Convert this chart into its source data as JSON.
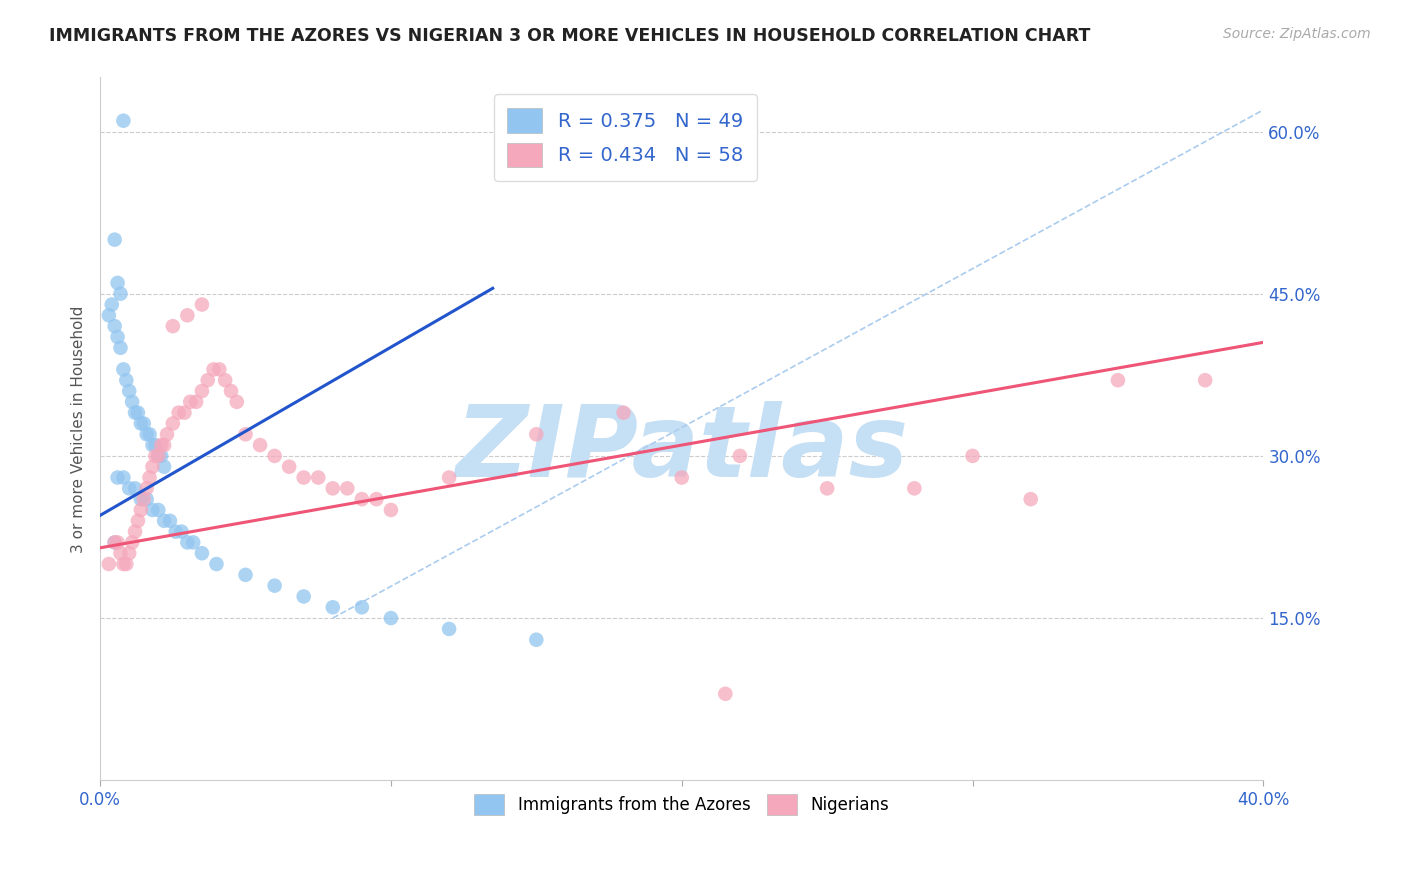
{
  "title": "IMMIGRANTS FROM THE AZORES VS NIGERIAN 3 OR MORE VEHICLES IN HOUSEHOLD CORRELATION CHART",
  "source": "Source: ZipAtlas.com",
  "ylabel_left": "3 or more Vehicles in Household",
  "legend_label1": "Immigrants from the Azores",
  "legend_label2": "Nigerians",
  "R1": "0.375",
  "N1": "49",
  "R2": "0.434",
  "N2": "58",
  "x_min": 0.0,
  "x_max": 0.4,
  "y_min": 0.0,
  "y_max": 0.65,
  "y_ticks_right": [
    0.15,
    0.3,
    0.45,
    0.6
  ],
  "y_tick_labels_right": [
    "15.0%",
    "30.0%",
    "45.0%",
    "60.0%"
  ],
  "grid_color": "#cccccc",
  "bg_color": "#ffffff",
  "blue_color": "#92c5f0",
  "pink_color": "#f5a8bc",
  "blue_line_color": "#2255cc",
  "pink_line_color": "#ee5577",
  "diag_line_color": "#aaccee",
  "watermark": "ZIPatlas",
  "watermark_color": "#c5dff5",
  "blue_scatter_x": [
    0.008,
    0.005,
    0.006,
    0.007,
    0.004,
    0.003,
    0.005,
    0.006,
    0.007,
    0.008,
    0.009,
    0.01,
    0.011,
    0.012,
    0.013,
    0.014,
    0.015,
    0.016,
    0.017,
    0.018,
    0.019,
    0.02,
    0.021,
    0.022,
    0.006,
    0.008,
    0.01,
    0.012,
    0.014,
    0.016,
    0.018,
    0.02,
    0.022,
    0.024,
    0.026,
    0.028,
    0.03,
    0.032,
    0.035,
    0.04,
    0.05,
    0.06,
    0.07,
    0.08,
    0.09,
    0.1,
    0.12,
    0.15,
    0.005
  ],
  "blue_scatter_y": [
    0.61,
    0.5,
    0.46,
    0.45,
    0.44,
    0.43,
    0.42,
    0.41,
    0.4,
    0.38,
    0.37,
    0.36,
    0.35,
    0.34,
    0.34,
    0.33,
    0.33,
    0.32,
    0.32,
    0.31,
    0.31,
    0.3,
    0.3,
    0.29,
    0.28,
    0.28,
    0.27,
    0.27,
    0.26,
    0.26,
    0.25,
    0.25,
    0.24,
    0.24,
    0.23,
    0.23,
    0.22,
    0.22,
    0.21,
    0.2,
    0.19,
    0.18,
    0.17,
    0.16,
    0.16,
    0.15,
    0.14,
    0.13,
    0.22
  ],
  "pink_scatter_x": [
    0.003,
    0.005,
    0.006,
    0.007,
    0.008,
    0.009,
    0.01,
    0.011,
    0.012,
    0.013,
    0.014,
    0.015,
    0.016,
    0.017,
    0.018,
    0.019,
    0.02,
    0.021,
    0.022,
    0.023,
    0.025,
    0.027,
    0.029,
    0.031,
    0.033,
    0.035,
    0.037,
    0.039,
    0.041,
    0.043,
    0.045,
    0.047,
    0.05,
    0.055,
    0.06,
    0.065,
    0.07,
    0.075,
    0.08,
    0.085,
    0.09,
    0.095,
    0.1,
    0.12,
    0.15,
    0.18,
    0.2,
    0.22,
    0.25,
    0.28,
    0.3,
    0.32,
    0.35,
    0.38,
    0.025,
    0.03,
    0.035,
    0.215
  ],
  "pink_scatter_y": [
    0.2,
    0.22,
    0.22,
    0.21,
    0.2,
    0.2,
    0.21,
    0.22,
    0.23,
    0.24,
    0.25,
    0.26,
    0.27,
    0.28,
    0.29,
    0.3,
    0.3,
    0.31,
    0.31,
    0.32,
    0.33,
    0.34,
    0.34,
    0.35,
    0.35,
    0.36,
    0.37,
    0.38,
    0.38,
    0.37,
    0.36,
    0.35,
    0.32,
    0.31,
    0.3,
    0.29,
    0.28,
    0.28,
    0.27,
    0.27,
    0.26,
    0.26,
    0.25,
    0.28,
    0.32,
    0.34,
    0.28,
    0.3,
    0.27,
    0.27,
    0.3,
    0.26,
    0.37,
    0.37,
    0.42,
    0.43,
    0.44,
    0.08
  ],
  "blue_line_x": [
    0.0,
    0.135
  ],
  "blue_line_y": [
    0.245,
    0.455
  ],
  "pink_line_x": [
    0.0,
    0.4
  ],
  "pink_line_y": [
    0.215,
    0.405
  ],
  "diag_line_x": [
    0.08,
    0.4
  ],
  "diag_line_y": [
    0.15,
    0.62
  ]
}
